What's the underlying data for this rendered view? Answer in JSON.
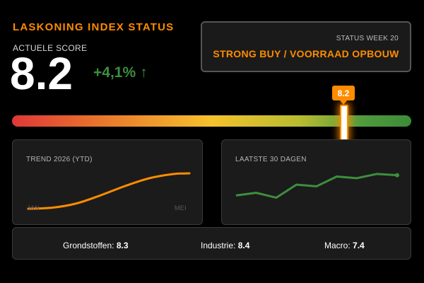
{
  "header": {
    "title": "LASKONING INDEX STATUS",
    "score_label": "ACTUELE SCORE",
    "score_value": "8.2",
    "score_change": "+4,1%",
    "score_change_arrow": "↑"
  },
  "status": {
    "week": "STATUS WEEK 20",
    "text": "STRONG BUY / VOORRAAD OPBOUW"
  },
  "gauge": {
    "marker_label": "8.2",
    "value": 8.2,
    "min": 0,
    "max": 10,
    "colors": [
      "#e03838",
      "#e8752c",
      "#f6c12e",
      "#b8bc30",
      "#3c8c38"
    ]
  },
  "colors": {
    "accent": "#ff8c00",
    "positive": "#3e8e3e"
  },
  "chart_data": [
    {
      "type": "line",
      "title": "TREND 2026 (YTD)",
      "x_tick_labels": [
        "JAN",
        "MEI"
      ],
      "x": [
        0,
        0.15,
        0.3,
        0.45,
        0.6,
        0.75,
        0.9,
        1.0
      ],
      "values": [
        0.0,
        0.03,
        0.15,
        0.38,
        0.64,
        0.86,
        0.98,
        1.0
      ],
      "color": "#ff8c00"
    },
    {
      "type": "line",
      "title": "LAATSTE 30 DAGEN",
      "values": [
        0.3,
        0.38,
        0.23,
        0.63,
        0.58,
        0.88,
        0.83,
        0.96,
        0.92
      ],
      "color": "#3e8e3e"
    }
  ],
  "footer": {
    "metrics": [
      {
        "label": "Grondstoffen:",
        "value": "8.3"
      },
      {
        "label": "Industrie:",
        "value": "8.4"
      },
      {
        "label": "Macro:",
        "value": "7.4"
      }
    ]
  }
}
